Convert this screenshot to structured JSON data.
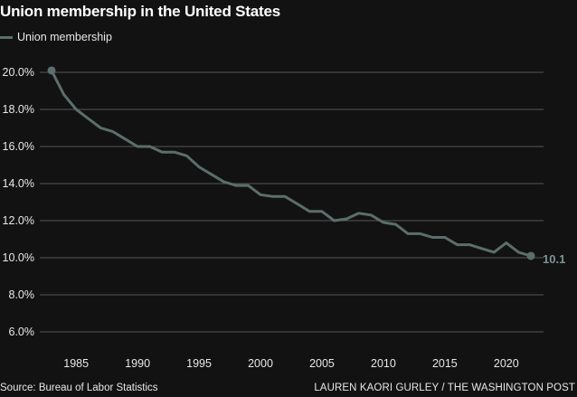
{
  "title": "Union membership in the United States",
  "legend": {
    "label": "Union membership",
    "color": "#5b6e6b"
  },
  "source": "Source: Bureau of Labor Statistics",
  "credit": "LAUREN KAORI GURLEY / THE WASHINGTON POST",
  "chart_data": {
    "type": "line",
    "title": "Union membership in the United States",
    "xlabel": "",
    "ylabel": "",
    "x": [
      1983,
      1984,
      1985,
      1986,
      1987,
      1988,
      1989,
      1990,
      1991,
      1992,
      1993,
      1994,
      1995,
      1996,
      1997,
      1998,
      1999,
      2000,
      2001,
      2002,
      2003,
      2004,
      2005,
      2006,
      2007,
      2008,
      2009,
      2010,
      2011,
      2012,
      2013,
      2014,
      2015,
      2016,
      2017,
      2018,
      2019,
      2020,
      2021,
      2022
    ],
    "series": [
      {
        "name": "Union membership",
        "color": "#5b6e6b",
        "values": [
          20.1,
          18.8,
          18.0,
          17.5,
          17.0,
          16.8,
          16.4,
          16.0,
          16.0,
          15.7,
          15.7,
          15.5,
          14.9,
          14.5,
          14.1,
          13.9,
          13.9,
          13.4,
          13.3,
          13.3,
          12.9,
          12.5,
          12.5,
          12.0,
          12.1,
          12.4,
          12.3,
          11.9,
          11.8,
          11.3,
          11.3,
          11.1,
          11.1,
          10.7,
          10.7,
          10.5,
          10.3,
          10.8,
          10.3,
          10.1
        ]
      }
    ],
    "end_label": "10.1",
    "xticks": [
      1985,
      1990,
      1995,
      2000,
      2005,
      2010,
      2015,
      2020
    ],
    "xtick_labels": [
      "1985",
      "1990",
      "1995",
      "2000",
      "2005",
      "2010",
      "2015",
      "2020"
    ],
    "yticks": [
      6,
      8,
      10,
      12,
      14,
      16,
      18,
      20
    ],
    "ytick_labels": [
      "6.0%",
      "8.0%",
      "10.0%",
      "12.0%",
      "14.0%",
      "16.0%",
      "18.0%",
      "20.0%"
    ],
    "ylim": [
      5.5,
      20.5
    ],
    "xlim": [
      1983,
      2022
    ],
    "grid": true,
    "legend_position": "top-left",
    "end_label_color": "#7d9592",
    "grid_color": "#555555",
    "background": "#121212"
  }
}
